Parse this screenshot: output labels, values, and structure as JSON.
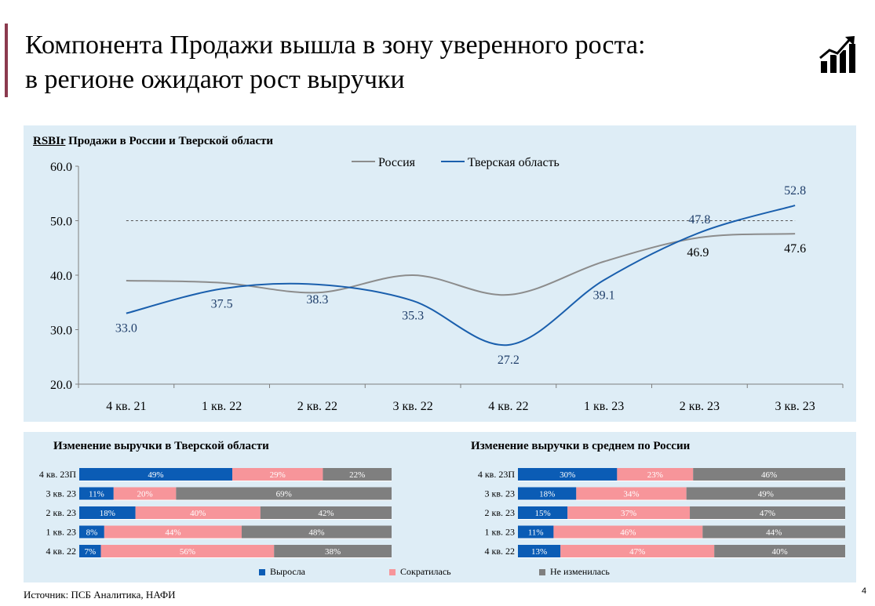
{
  "slide": {
    "title_line1": "Компонента Продажи вышла в зону уверенного роста:",
    "title_line2": "в регионе ожидают рост выручки",
    "source": "Источник: ПСБ Аналитика, НАФИ",
    "page_number": "4",
    "logo_icon": "growth-chart-icon"
  },
  "colors": {
    "russia": "#8c8c8c",
    "tver": "#1a5fad",
    "grew": "#0b5cb5",
    "fell": "#f7959a",
    "unchanged": "#7f7f7f",
    "panel": "#deedf6",
    "accent": "#8b3a4e"
  },
  "chart_data": [
    {
      "type": "line",
      "title_brand": "RSBIr",
      "title": "Продажи в России и Тверской области",
      "categories": [
        "4 кв. 21",
        "1 кв. 22",
        "2 кв. 22",
        "3 кв. 22",
        "4 кв. 22",
        "1 кв. 23",
        "2 кв. 23",
        "3 кв. 23"
      ],
      "series": [
        {
          "name": "Россия",
          "values": [
            39.0,
            38.6,
            36.8,
            40.0,
            36.4,
            42.5,
            46.9,
            47.6
          ],
          "labels": [
            null,
            null,
            null,
            null,
            null,
            null,
            "46.9",
            "47.6"
          ]
        },
        {
          "name": "Тверская область",
          "values": [
            33.0,
            37.5,
            38.3,
            35.3,
            27.2,
            39.1,
            47.8,
            52.8
          ],
          "labels": [
            "33.0",
            "37.5",
            "38.3",
            "35.3",
            "27.2",
            "39.1",
            "47.8",
            "52.8"
          ]
        }
      ],
      "ylim": [
        20,
        60
      ],
      "yticks": [
        "20.0",
        "30.0",
        "40.0",
        "50.0",
        "60.0"
      ],
      "reference_line": 50,
      "legend": "top-center"
    },
    {
      "type": "bar",
      "orientation": "horizontal-stacked-100",
      "title": "Изменение выручки в Тверской области",
      "categories": [
        "4 кв. 23П",
        "3 кв. 23",
        "2 кв. 23",
        "1 кв. 23",
        "4 кв. 22"
      ],
      "series": [
        {
          "name": "Выросла",
          "values": [
            49,
            11,
            18,
            8,
            7
          ]
        },
        {
          "name": "Сократилась",
          "values": [
            29,
            20,
            40,
            44,
            56
          ]
        },
        {
          "name": "Не изменилась",
          "values": [
            22,
            69,
            42,
            48,
            38
          ]
        }
      ]
    },
    {
      "type": "bar",
      "orientation": "horizontal-stacked-100",
      "title": "Изменение выручки в среднем по России",
      "categories": [
        "4 кв. 23П",
        "3 кв. 23",
        "2 кв. 23",
        "1 кв. 23",
        "4 кв. 22"
      ],
      "series": [
        {
          "name": "Выросла",
          "values": [
            30,
            18,
            15,
            11,
            13
          ]
        },
        {
          "name": "Сократилась",
          "values": [
            23,
            34,
            37,
            46,
            47
          ]
        },
        {
          "name": "Не изменилась",
          "values": [
            46,
            49,
            47,
            44,
            40
          ]
        }
      ]
    }
  ],
  "bar_legend": [
    "Выросла",
    "Сократилась",
    "Не изменилась"
  ]
}
